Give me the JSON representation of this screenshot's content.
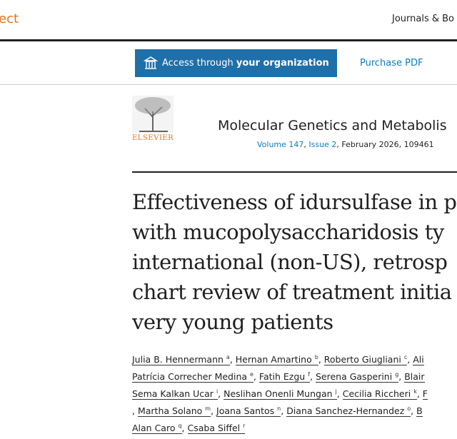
{
  "header": {
    "logo_fragment": "ect",
    "nav": "Journals & Bo"
  },
  "access": {
    "prefix": "Access through ",
    "bold": "your organization"
  },
  "purchase": "Purchase PDF",
  "publisher": "ELSEVIER",
  "journal": {
    "name": "Molecular Genetics and Metabolis",
    "volume": "Volume 147",
    "issue": "Issue 2",
    "rest": ", February 2026, 109461"
  },
  "sep": ", ",
  "title": [
    "Effectiveness of idursulfase in p",
    "with mucopolysaccharidosis ty",
    "international (non-US), retrosp",
    "chart review of treatment initia",
    "very young patients"
  ],
  "authors": [
    [
      {
        "name": "Julia B. Hennermann",
        "sup": "a"
      },
      {
        "name": "Hernan Amartino",
        "sup": "b"
      },
      {
        "name": "Roberto Giugliani",
        "sup": "c"
      },
      {
        "name": "Ali"
      }
    ],
    [
      {
        "name": "Patrícia Correcher Medina",
        "sup": "e"
      },
      {
        "name": "Fatih Ezgu",
        "sup": "f"
      },
      {
        "name": "Serena Gasperini",
        "sup": "g"
      },
      {
        "name": "Blair"
      }
    ],
    [
      {
        "name": "Sema Kalkan Ucar",
        "sup": "i"
      },
      {
        "name": "Neslihan Onenli Mungan",
        "sup": "j"
      },
      {
        "name": "Cecilia Riccheri",
        "sup": "k"
      },
      {
        "name": "F"
      }
    ],
    [
      {
        "text": ","
      },
      {
        "name": "Martha Solano",
        "sup": "m"
      },
      {
        "name": "Joana Santos",
        "sup": "n"
      },
      {
        "name": "Diana Sanchez-Hernandez",
        "sup": "o"
      },
      {
        "name": "B"
      }
    ],
    [
      {
        "name": "Alan Caro",
        "sup": "q"
      },
      {
        "name": "Csaba Siffel",
        "sup": "r"
      }
    ]
  ]
}
